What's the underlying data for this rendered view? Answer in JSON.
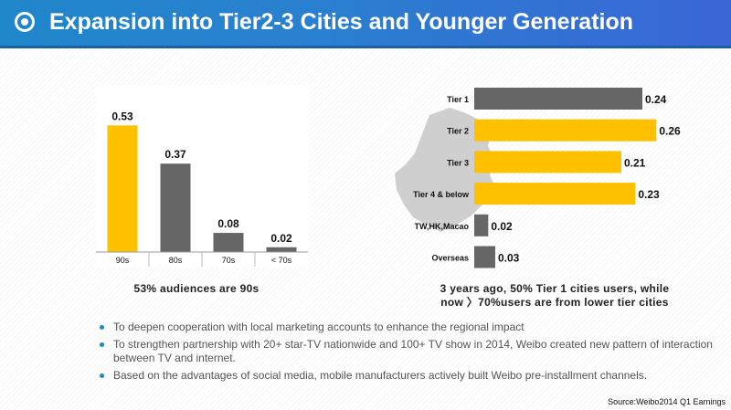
{
  "header": {
    "title": "Expansion into Tier2-3 Cities and Younger Generation"
  },
  "colors": {
    "highlight": "#FFC000",
    "neutral": "#666666",
    "header_blue": "#1f86c9"
  },
  "chart_data": [
    {
      "type": "bar",
      "categories": [
        "90s",
        "80s",
        "70s",
        "< 70s"
      ],
      "values": [
        0.53,
        0.37,
        0.08,
        0.02
      ],
      "colors": [
        "#FFC000",
        "#666666",
        "#666666",
        "#666666"
      ],
      "ylim": [
        0,
        0.6
      ],
      "caption": "53% audiences are 90s"
    },
    {
      "type": "bar",
      "orientation": "horizontal",
      "categories": [
        "Tier 1",
        "Tier 2",
        "Tier 3",
        "Tier 4 & below",
        "TW,HK,Macao",
        "Overseas"
      ],
      "values": [
        0.24,
        0.26,
        0.21,
        0.23,
        0.02,
        0.03
      ],
      "colors": [
        "#666666",
        "#FFC000",
        "#FFC000",
        "#FFC000",
        "#666666",
        "#666666"
      ],
      "xlim": [
        0,
        0.3
      ],
      "caption_lines": [
        "3 years ago, 50% Tier 1 cities users, while",
        "now 〉70%users are from lower tier cities"
      ]
    }
  ],
  "bullets": [
    "To deepen cooperation with local marketing accounts to enhance the regional impact",
    "To strengthen partnership with 20+ star-TV nationwide and 100+ TV show in 2014, Weibo created new pattern of interaction between TV and internet.",
    "Based on the advantages of social media, mobile manufacturers actively built Weibo pre-installment channels."
  ],
  "source": "Source:Weibo2014 Q1 Earnings"
}
